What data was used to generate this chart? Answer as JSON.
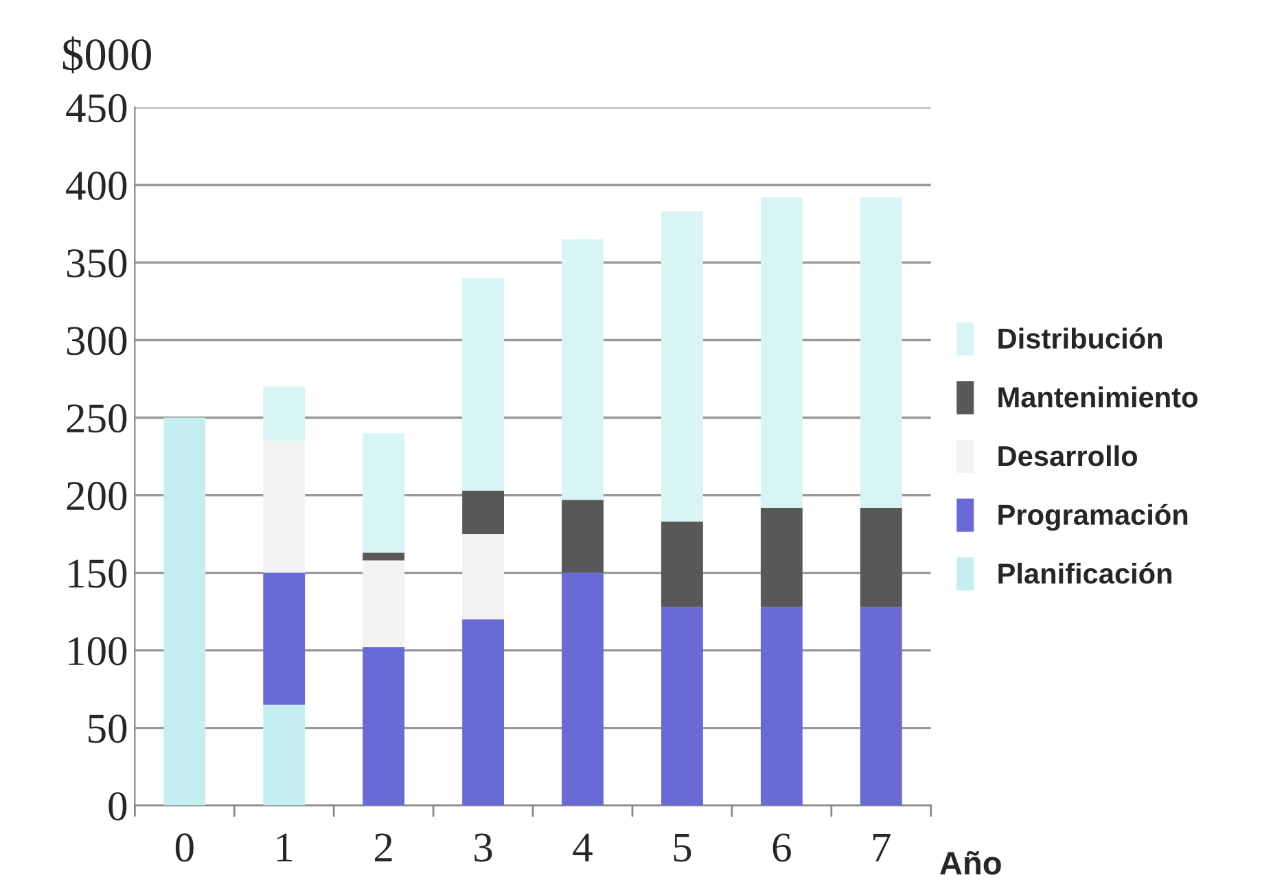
{
  "chart_data": {
    "type": "bar",
    "stacked": true,
    "ylabel": "$000",
    "xlabel": "Año",
    "categories": [
      "0",
      "1",
      "2",
      "3",
      "4",
      "5",
      "6",
      "7"
    ],
    "series": [
      {
        "name": "Planificación",
        "color": "#c4eef0",
        "values": [
          250,
          65,
          null,
          null,
          null,
          null,
          null,
          null
        ]
      },
      {
        "name": "Programación",
        "color": "#6a6ad6",
        "values": [
          null,
          85,
          102,
          120,
          150,
          128,
          128,
          128
        ]
      },
      {
        "name": "Desarrollo",
        "color": "#f3f3f3",
        "values": [
          null,
          85,
          56,
          55,
          null,
          null,
          null,
          null
        ]
      },
      {
        "name": "Mantenimiento",
        "color": "#585858",
        "values": [
          null,
          null,
          5,
          28,
          47,
          55,
          64,
          64
        ]
      },
      {
        "name": "Distribución",
        "color": "#d8f4f5",
        "values": [
          null,
          35,
          77,
          137,
          168,
          200,
          200,
          200
        ]
      }
    ],
    "ylim": [
      0,
      450
    ],
    "yticks": [
      0,
      50,
      100,
      150,
      200,
      250,
      300,
      350,
      400,
      450
    ],
    "grid": "y",
    "legend": "right"
  }
}
